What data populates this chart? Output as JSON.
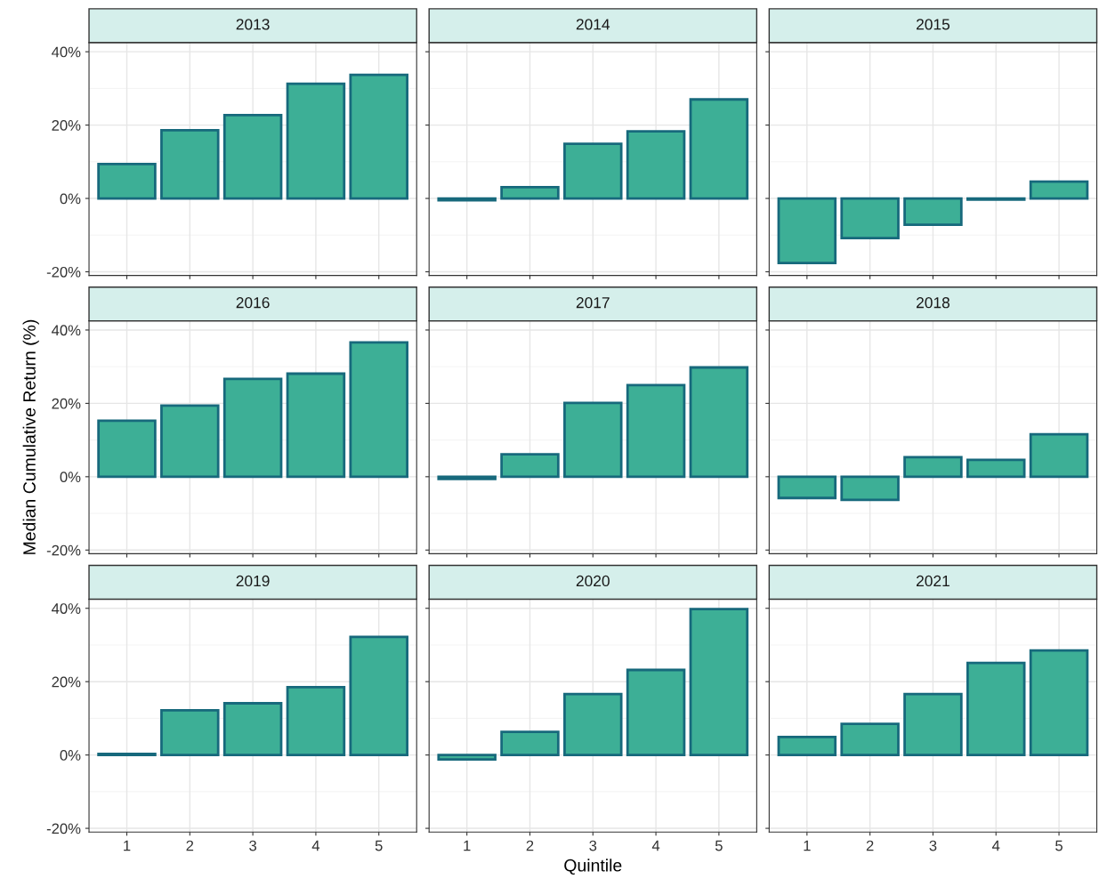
{
  "chart_data": [
    {
      "type": "bar",
      "title": "2013",
      "categories": [
        "1",
        "2",
        "3",
        "4",
        "5"
      ],
      "values": [
        9.4,
        18.6,
        22.7,
        31.3,
        33.7
      ],
      "color": "#3daf96",
      "ylim": [
        -21,
        42.5
      ],
      "yticks": [
        {
          "value": -20,
          "label": "-20%"
        },
        {
          "value": 0,
          "label": "0%"
        },
        {
          "value": 20,
          "label": "20%"
        },
        {
          "value": 40,
          "label": "40%"
        }
      ],
      "grid": true,
      "tick_labels": "y"
    },
    {
      "type": "bar",
      "title": "2014",
      "categories": [
        "1",
        "2",
        "3",
        "4",
        "5"
      ],
      "values": [
        -0.5,
        3.1,
        14.9,
        18.3,
        27.0
      ],
      "color": "#3daf96",
      "ylim": [
        -21,
        42.5
      ],
      "yticks": [
        {
          "value": -20,
          "label": null
        },
        {
          "value": 0,
          "label": null
        },
        {
          "value": 20,
          "label": null
        },
        {
          "value": 40,
          "label": null
        }
      ],
      "grid": true,
      "tick_labels": false
    },
    {
      "type": "bar",
      "title": "2015",
      "categories": [
        "1",
        "2",
        "3",
        "4",
        "5"
      ],
      "values": [
        -17.6,
        -10.8,
        -7.2,
        -0.3,
        4.6
      ],
      "color": "#3daf96",
      "ylim": [
        -21,
        42.5
      ],
      "yticks": [
        {
          "value": -20,
          "label": null
        },
        {
          "value": 0,
          "label": null
        },
        {
          "value": 20,
          "label": null
        },
        {
          "value": 40,
          "label": null
        }
      ],
      "grid": true,
      "tick_labels": false
    },
    {
      "type": "bar",
      "title": "2016",
      "ylabel": "Median Cumulative Return (%)",
      "categories": [
        "1",
        "2",
        "3",
        "4",
        "5"
      ],
      "values": [
        15.3,
        19.4,
        26.7,
        28.1,
        36.6
      ],
      "color": "#3daf96",
      "ylim": [
        -21,
        42.5
      ],
      "yticks": [
        {
          "value": -20,
          "label": "-20%"
        },
        {
          "value": 0,
          "label": "0%"
        },
        {
          "value": 20,
          "label": "20%"
        },
        {
          "value": 40,
          "label": "40%"
        }
      ],
      "grid": true,
      "tick_labels": "y"
    },
    {
      "type": "bar",
      "title": "2017",
      "categories": [
        "1",
        "2",
        "3",
        "4",
        "5"
      ],
      "values": [
        -0.6,
        6.1,
        20.1,
        25.0,
        29.8
      ],
      "color": "#3daf96",
      "ylim": [
        -21,
        42.5
      ],
      "yticks": [
        {
          "value": -20,
          "label": null
        },
        {
          "value": 0,
          "label": null
        },
        {
          "value": 20,
          "label": null
        },
        {
          "value": 40,
          "label": null
        }
      ],
      "grid": true,
      "tick_labels": false
    },
    {
      "type": "bar",
      "title": "2018",
      "categories": [
        "1",
        "2",
        "3",
        "4",
        "5"
      ],
      "values": [
        -5.8,
        -6.3,
        5.3,
        4.6,
        11.6
      ],
      "color": "#3daf96",
      "ylim": [
        -21,
        42.5
      ],
      "yticks": [
        {
          "value": -20,
          "label": null
        },
        {
          "value": 0,
          "label": null
        },
        {
          "value": 20,
          "label": null
        },
        {
          "value": 40,
          "label": null
        }
      ],
      "grid": true,
      "tick_labels": false
    },
    {
      "type": "bar",
      "title": "2019",
      "categories": [
        "1",
        "2",
        "3",
        "4",
        "5"
      ],
      "values": [
        0.3,
        12.2,
        14.1,
        18.5,
        32.2
      ],
      "color": "#3daf96",
      "ylim": [
        -21,
        42.5
      ],
      "yticks": [
        {
          "value": -20,
          "label": "-20%"
        },
        {
          "value": 0,
          "label": "0%"
        },
        {
          "value": 20,
          "label": "20%"
        },
        {
          "value": 40,
          "label": "40%"
        }
      ],
      "grid": true
    },
    {
      "type": "bar",
      "title": "2020",
      "xlabel": "Quintile",
      "categories": [
        "1",
        "2",
        "3",
        "4",
        "5"
      ],
      "values": [
        -1.2,
        6.3,
        16.6,
        23.2,
        39.8
      ],
      "color": "#3daf96",
      "ylim": [
        -21,
        42.5
      ],
      "yticks": [
        {
          "value": -20,
          "label": null
        },
        {
          "value": 0,
          "label": null
        },
        {
          "value": 20,
          "label": null
        },
        {
          "value": 40,
          "label": null
        }
      ],
      "grid": true,
      "tick_labels": "x"
    },
    {
      "type": "bar",
      "title": "2021",
      "categories": [
        "1",
        "2",
        "3",
        "4",
        "5"
      ],
      "values": [
        4.9,
        8.5,
        16.6,
        25.1,
        28.5
      ],
      "color": "#3daf96",
      "ylim": [
        -21,
        42.5
      ],
      "yticks": [
        {
          "value": -20,
          "label": null
        },
        {
          "value": 0,
          "label": null
        },
        {
          "value": 20,
          "label": null
        },
        {
          "value": 40,
          "label": null
        }
      ],
      "grid": true,
      "tick_labels": "x"
    }
  ]
}
